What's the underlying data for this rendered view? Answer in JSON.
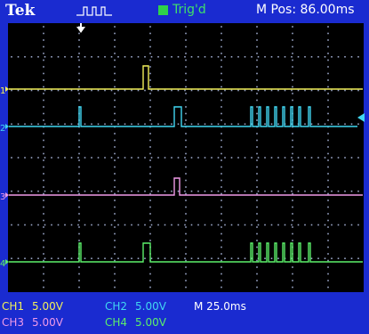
{
  "header": {
    "brand": "Tek",
    "trigger_status": "Trig'd",
    "horizontal_position": "M Pos: 86.00ms"
  },
  "channels": [
    {
      "marker": "1",
      "label": "CH1",
      "scale": "5.00V",
      "color": "#f2f05a"
    },
    {
      "marker": "2",
      "label": "CH2",
      "scale": "5.00V",
      "color": "#41d7f2"
    },
    {
      "marker": "3",
      "label": "CH3",
      "scale": "5.00V",
      "color": "#f09ae8"
    },
    {
      "marker": "4",
      "label": "CH4",
      "scale": "5.00V",
      "color": "#5cf06a"
    }
  ],
  "timebase": "M 25.0ms",
  "colors": {
    "background": "#1a2bd0",
    "grid_area": "#000000",
    "grid_dots": "#9aa6c8",
    "trigger_marker": "#ffffff",
    "trigger_status": "#3fe06a"
  },
  "icons": {
    "acquisition": "pulse-waveform-icon",
    "trigger_position": "down-arrow-icon",
    "trigger_level": "left-arrow-icon"
  }
}
